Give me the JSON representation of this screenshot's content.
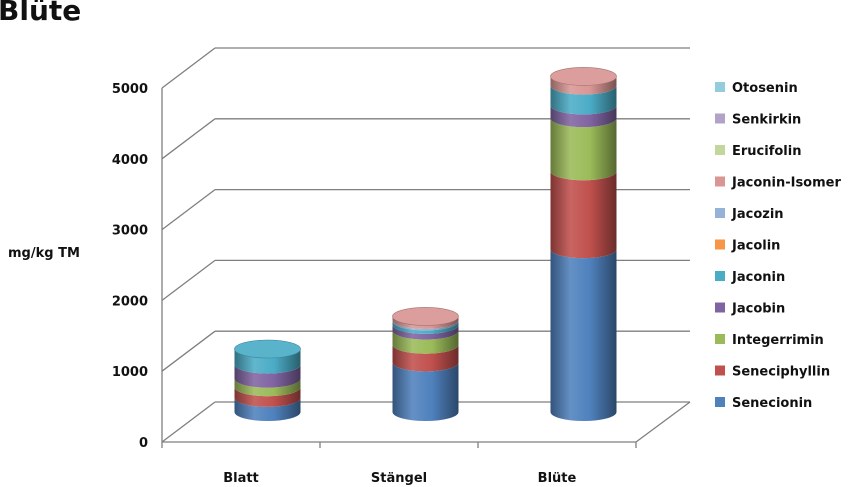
{
  "chart_data": {
    "type": "bar",
    "stacked": true,
    "style": "3d-cylinder",
    "title": "Blüte",
    "ylabel": "mg/kg TM",
    "xlabel": "",
    "ylim": [
      0,
      5000
    ],
    "yticks": [
      0,
      1000,
      2000,
      3000,
      4000,
      5000
    ],
    "grid": true,
    "legend_position": "right",
    "categories": [
      "Blatt",
      "Stängel",
      "Blüte"
    ],
    "series": [
      {
        "name": "Senecionin",
        "color": "#4f81bd",
        "values": [
          200,
          700,
          2300
        ]
      },
      {
        "name": "Seneciphyllin",
        "color": "#c0504d",
        "values": [
          150,
          250,
          1100
        ]
      },
      {
        "name": "Integerrimin",
        "color": "#9bbb59",
        "values": [
          120,
          200,
          750
        ]
      },
      {
        "name": "Jacobin",
        "color": "#8064a2",
        "values": [
          200,
          80,
          180
        ]
      },
      {
        "name": "Jaconin",
        "color": "#4bacc6",
        "values": [
          220,
          50,
          280
        ]
      },
      {
        "name": "Jacolin",
        "color": "#f79646",
        "values": [
          0,
          0,
          0
        ]
      },
      {
        "name": "Jacozin",
        "color": "#95b3d7",
        "values": [
          0,
          20,
          0
        ]
      },
      {
        "name": "Jaconin-Isomer",
        "color": "#d99694",
        "values": [
          0,
          50,
          130
        ]
      },
      {
        "name": "Erucifolin",
        "color": "#c3d69b",
        "values": [
          0,
          0,
          0
        ]
      },
      {
        "name": "Senkirkin",
        "color": "#b2a2c7",
        "values": [
          0,
          0,
          0
        ]
      },
      {
        "name": "Otosenin",
        "color": "#92cddc",
        "values": [
          0,
          0,
          0
        ]
      }
    ]
  }
}
